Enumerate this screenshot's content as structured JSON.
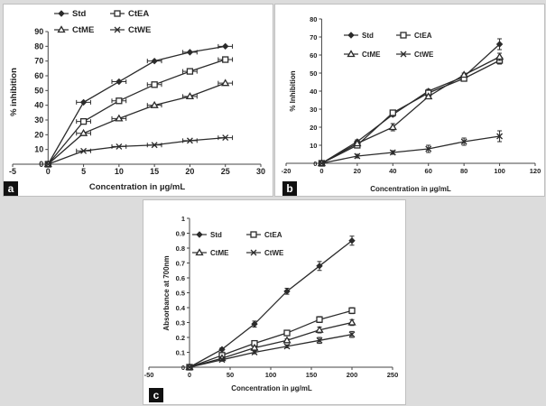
{
  "figure": {
    "panel_labels": {
      "a": "a",
      "b": "b",
      "c": "c"
    }
  },
  "colors": {
    "series": "#2b2b2b",
    "axis": "#444444",
    "background": "#dcdcdc"
  },
  "chart_data": [
    {
      "id": "a",
      "type": "line",
      "title": "",
      "xlabel": "Concentration in µg/mL",
      "ylabel": "% inhibition",
      "xlim": [
        -5,
        30
      ],
      "ylim": [
        0,
        90
      ],
      "xticks": [
        -5,
        0,
        5,
        10,
        15,
        20,
        25,
        30
      ],
      "yticks": [
        0,
        10,
        20,
        30,
        40,
        50,
        60,
        70,
        80,
        90
      ],
      "error_orientation": "x",
      "grid": false,
      "legend": [
        "Std",
        "CtEA",
        "CtME",
        "CtWE"
      ],
      "series": [
        {
          "name": "Std",
          "marker": "diamond",
          "x": [
            0,
            5,
            10,
            15,
            20,
            25
          ],
          "y": [
            0,
            42,
            56,
            70,
            76,
            80
          ],
          "err": [
            0,
            1,
            1,
            1,
            1,
            1
          ]
        },
        {
          "name": "CtEA",
          "marker": "square",
          "x": [
            0,
            5,
            10,
            15,
            20,
            25
          ],
          "y": [
            0,
            29,
            43,
            54,
            63,
            71
          ],
          "err": [
            0,
            1,
            1,
            1,
            1,
            1
          ]
        },
        {
          "name": "CtME",
          "marker": "triangle",
          "x": [
            0,
            5,
            10,
            15,
            20,
            25
          ],
          "y": [
            0,
            21,
            31,
            40,
            46,
            55
          ],
          "err": [
            0,
            1,
            1,
            1,
            1,
            1
          ]
        },
        {
          "name": "CtWE",
          "marker": "x",
          "x": [
            0,
            5,
            10,
            15,
            20,
            25
          ],
          "y": [
            0,
            9,
            12,
            13,
            16,
            18
          ],
          "err": [
            0,
            1,
            1,
            1,
            1,
            1
          ]
        }
      ]
    },
    {
      "id": "b",
      "type": "line",
      "title": "",
      "xlabel": "Concentration in µg/mL",
      "ylabel": "% Inhibition",
      "xlim": [
        -20,
        120
      ],
      "ylim": [
        0,
        80
      ],
      "xticks": [
        -20,
        0,
        20,
        40,
        60,
        80,
        100,
        120
      ],
      "yticks": [
        0,
        10,
        20,
        30,
        40,
        50,
        60,
        70,
        80
      ],
      "error_orientation": "y",
      "grid": false,
      "legend": [
        "Std",
        "CtEA",
        "CtME",
        "CtWE"
      ],
      "series": [
        {
          "name": "Std",
          "marker": "diamond",
          "x": [
            0,
            20,
            40,
            60,
            80,
            100
          ],
          "y": [
            0,
            12,
            27,
            40,
            48,
            66
          ],
          "err": [
            0,
            1,
            1,
            1,
            1,
            3
          ]
        },
        {
          "name": "CtEA",
          "marker": "square",
          "x": [
            0,
            20,
            40,
            60,
            80,
            100
          ],
          "y": [
            0,
            10,
            28,
            39,
            47,
            57
          ],
          "err": [
            0,
            1,
            1,
            1,
            1,
            2
          ]
        },
        {
          "name": "CtME",
          "marker": "triangle",
          "x": [
            0,
            20,
            40,
            60,
            80,
            100
          ],
          "y": [
            0,
            11,
            20,
            37,
            49,
            59
          ],
          "err": [
            0,
            1,
            2,
            1,
            1,
            2
          ]
        },
        {
          "name": "CtWE",
          "marker": "x",
          "x": [
            0,
            20,
            40,
            60,
            80,
            100
          ],
          "y": [
            0,
            4,
            6,
            8,
            12,
            15
          ],
          "err": [
            0,
            1,
            1,
            2,
            2,
            3
          ]
        }
      ]
    },
    {
      "id": "c",
      "type": "line",
      "title": "",
      "xlabel": "Concentration in µg/mL",
      "ylabel": "Absorbance at 700nm",
      "xlim": [
        -50,
        250
      ],
      "ylim": [
        0,
        1
      ],
      "xticks": [
        -50,
        0,
        50,
        100,
        150,
        200,
        250
      ],
      "yticks": [
        0,
        0.1,
        0.2,
        0.3,
        0.4,
        0.5,
        0.6,
        0.7,
        0.8,
        0.9,
        1
      ],
      "error_orientation": "y",
      "grid": false,
      "legend": [
        "Std",
        "CtEA",
        "CtME",
        "CtWE"
      ],
      "series": [
        {
          "name": "Std",
          "marker": "diamond",
          "x": [
            0,
            40,
            80,
            120,
            160,
            200
          ],
          "y": [
            0,
            0.12,
            0.29,
            0.51,
            0.68,
            0.85
          ],
          "err": [
            0,
            0.01,
            0.02,
            0.02,
            0.03,
            0.03
          ]
        },
        {
          "name": "CtEA",
          "marker": "square",
          "x": [
            0,
            40,
            80,
            120,
            160,
            200
          ],
          "y": [
            0,
            0.08,
            0.16,
            0.23,
            0.32,
            0.38
          ],
          "err": [
            0,
            0.01,
            0.01,
            0.01,
            0.02,
            0.02
          ]
        },
        {
          "name": "CtME",
          "marker": "triangle",
          "x": [
            0,
            40,
            80,
            120,
            160,
            200
          ],
          "y": [
            0,
            0.06,
            0.13,
            0.18,
            0.25,
            0.3
          ],
          "err": [
            0,
            0.01,
            0.01,
            0.01,
            0.02,
            0.02
          ]
        },
        {
          "name": "CtWE",
          "marker": "x",
          "x": [
            0,
            40,
            80,
            120,
            160,
            200
          ],
          "y": [
            0,
            0.05,
            0.1,
            0.14,
            0.18,
            0.22
          ],
          "err": [
            0,
            0.01,
            0.01,
            0.01,
            0.02,
            0.02
          ]
        }
      ]
    }
  ]
}
